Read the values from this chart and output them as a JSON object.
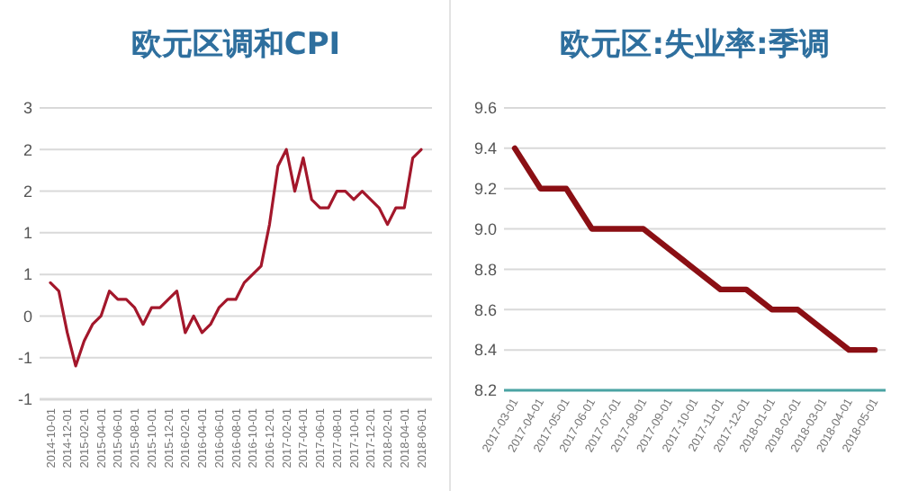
{
  "chart_data": [
    {
      "type": "line",
      "title": "欧元区调和CPI",
      "categories": [
        "2014-10-01",
        null,
        "2014-12-01",
        null,
        "2015-02-01",
        null,
        "2015-04-01",
        null,
        "2015-06-01",
        null,
        "2015-08-01",
        null,
        "2015-10-01",
        null,
        "2015-12-01",
        null,
        "2016-02-01",
        null,
        "2016-04-01",
        null,
        "2016-06-01",
        null,
        "2016-08-01",
        null,
        "2016-10-01",
        null,
        "2016-12-01",
        null,
        "2017-02-01",
        null,
        "2017-04-01",
        null,
        "2017-06-01",
        null,
        "2017-08-01",
        null,
        "2017-10-01",
        null,
        "2017-12-01",
        null,
        "2018-02-01",
        null,
        "2018-04-01",
        null,
        "2018-06-01"
      ],
      "series": [
        {
          "color": "#a3172b",
          "values": [
            0.4,
            0.3,
            -0.2,
            -0.6,
            -0.3,
            -0.1,
            0.0,
            0.3,
            0.2,
            0.2,
            0.1,
            -0.1,
            0.1,
            0.1,
            0.2,
            0.3,
            -0.2,
            0.0,
            -0.2,
            -0.1,
            0.1,
            0.2,
            0.2,
            0.4,
            0.5,
            0.6,
            1.1,
            1.8,
            2.0,
            1.5,
            1.9,
            1.4,
            1.3,
            1.3,
            1.5,
            1.5,
            1.4,
            1.5,
            1.4,
            1.3,
            1.1,
            1.3,
            1.3,
            1.9,
            2.0
          ]
        }
      ],
      "ylim": [
        -1,
        2.5
      ],
      "yticks": [
        {
          "value": 2.5,
          "label": "3"
        },
        {
          "value": 2,
          "label": "2"
        },
        {
          "value": 1.5,
          "label": "2"
        },
        {
          "value": 1,
          "label": "1"
        },
        {
          "value": 0.5,
          "label": "1"
        },
        0,
        {
          "value": -0.5,
          "label": "-1"
        },
        -1
      ],
      "grid": "y",
      "marker": "none",
      "line_style": "solid"
    },
    {
      "type": "line",
      "title": "欧元区:失业率:季调",
      "categories": [
        "2017-03-01",
        "2017-04-01",
        "2017-05-01",
        "2017-06-01",
        "2017-07-01",
        "2017-08-01",
        "2017-09-01",
        "2017-10-01",
        "2017-11-01",
        "2017-12-01",
        "2018-01-01",
        "2018-02-01",
        "2018-03-01",
        "2018-04-01",
        "2018-05-01"
      ],
      "series": [
        {
          "color": "#8b0f14",
          "values": [
            9.4,
            9.2,
            9.2,
            9.0,
            9.0,
            9.0,
            8.9,
            8.8,
            8.7,
            8.7,
            8.6,
            8.6,
            8.5,
            8.4,
            8.4
          ]
        }
      ],
      "ylim": [
        8.2,
        9.6
      ],
      "yticks": [
        8.2,
        8.4,
        8.6,
        8.8,
        {
          "value": 9,
          "label": "9.0"
        },
        9.2,
        9.4,
        9.6
      ],
      "grid": "y",
      "marker": "none",
      "line_style": "solid"
    }
  ]
}
